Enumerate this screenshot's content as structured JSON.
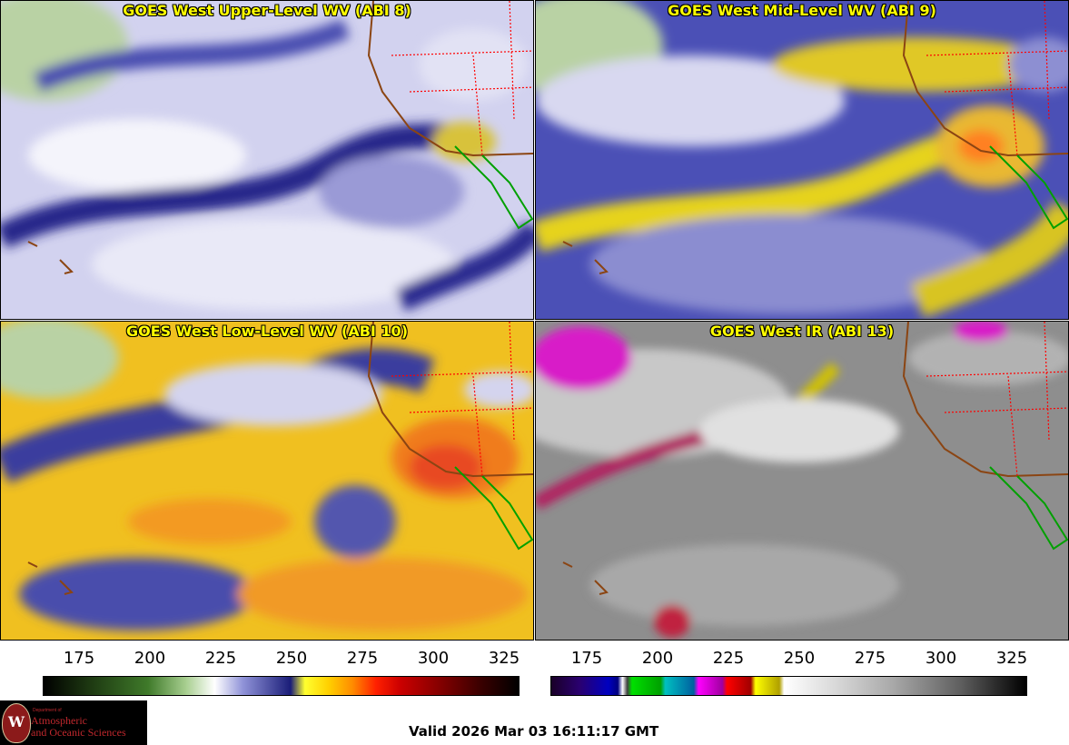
{
  "panels": {
    "top_left": {
      "title": "GOES West Upper-Level WV (ABI 8)"
    },
    "top_right": {
      "title": "GOES West Mid-Level WV (ABI 9)"
    },
    "bottom_left": {
      "title": "GOES West Low-Level WV (ABI 10)"
    },
    "bottom_right": {
      "title": "GOES West IR (ABI 13)"
    }
  },
  "colorbars": {
    "wv": {
      "ticks": [
        "175",
        "200",
        "225",
        "250",
        "275",
        "300",
        "325"
      ]
    },
    "ir": {
      "ticks": [
        "175",
        "200",
        "225",
        "250",
        "275",
        "300",
        "325"
      ]
    }
  },
  "logo": {
    "department": "Department of",
    "line1": "Atmospheric",
    "line2": "and Oceanic Sciences",
    "seal_letter": "W"
  },
  "valid_time": "Valid 2026 Mar 03 16:11:17 GMT",
  "colors": {
    "title_text": "#ffff00",
    "state_borders": "#ff0000",
    "coastline": "#8b4513",
    "mexico_border": "#00a000"
  }
}
